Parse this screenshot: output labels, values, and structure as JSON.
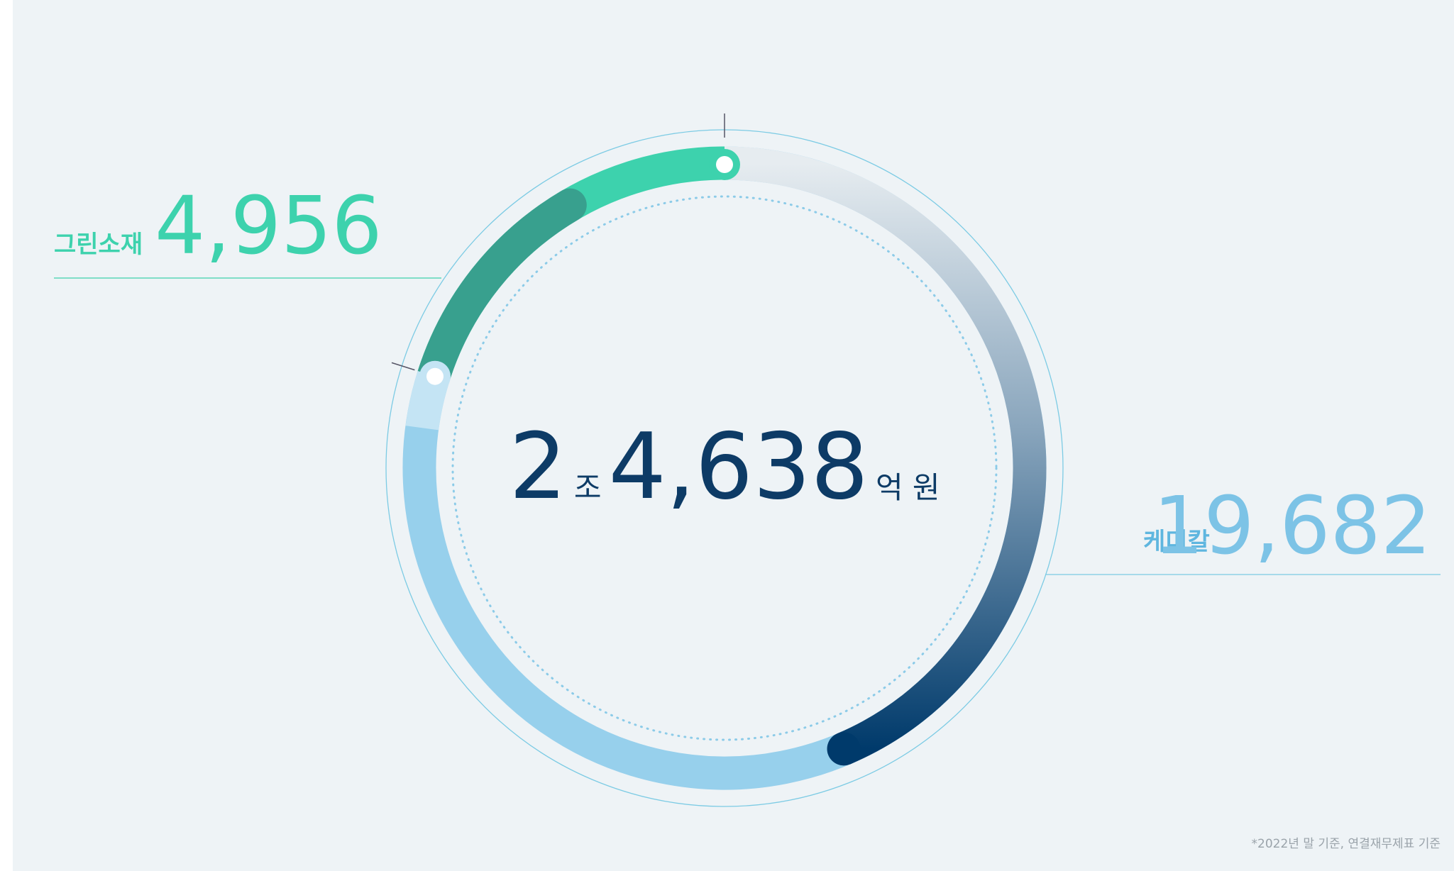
{
  "chart_data": {
    "type": "donut",
    "categories": [
      "그린소재",
      "케미칼"
    ],
    "values": [
      4956,
      19682
    ],
    "value_labels": [
      "4,956",
      "19,682"
    ],
    "colors": [
      "#3dd2ad",
      "#97d0ec"
    ],
    "total": [
      "2",
      "조",
      "4,638",
      "억 원"
    ],
    "note": "*2022년 말 기준, 연결재무제표 기준"
  }
}
